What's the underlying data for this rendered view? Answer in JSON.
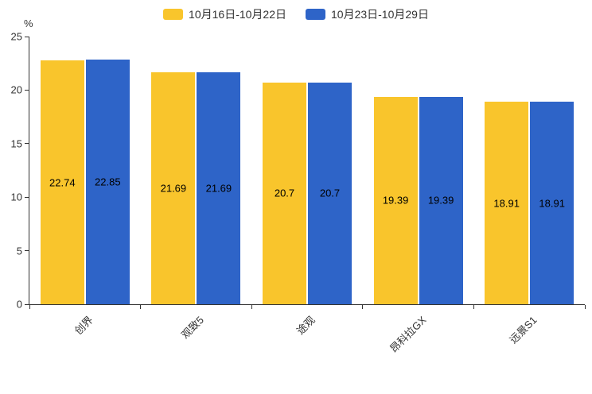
{
  "chart_data": {
    "type": "bar",
    "categories": [
      "创界",
      "观致5",
      "途观",
      "昂科拉GX",
      "远景S1"
    ],
    "series": [
      {
        "name": "10月16日-10月22日",
        "color": "#F9C52C",
        "values": [
          22.74,
          21.69,
          20.7,
          19.39,
          18.91
        ]
      },
      {
        "name": "10月23日-10月29日",
        "color": "#2E64C8",
        "values": [
          22.85,
          21.69,
          20.7,
          19.39,
          18.91
        ]
      }
    ],
    "title": "",
    "xlabel": "",
    "ylabel": "%",
    "ylim": [
      0,
      25
    ],
    "yticks": [
      0,
      5,
      10,
      15,
      20,
      25
    ],
    "grid": false,
    "legend_position": "top",
    "bar_label_position": "inside-center"
  }
}
